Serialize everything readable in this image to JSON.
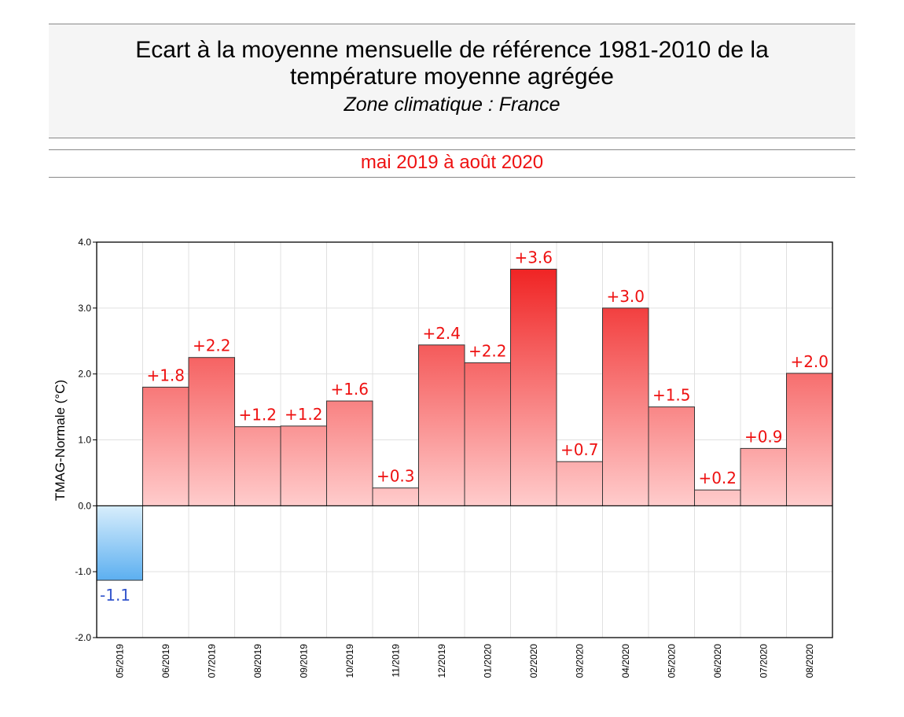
{
  "header": {
    "title_line1": "Ecart à la moyenne mensuelle de référence 1981-2010 de la",
    "title_line2": "température moyenne  agrégée",
    "subtitle": "Zone climatique : France"
  },
  "period": "mai 2019 à août 2020",
  "chart_data": {
    "type": "bar",
    "title": "Ecart à la moyenne mensuelle de référence 1981-2010 de la température moyenne  agrégée",
    "ylabel": "TMAG-Normale (°C)",
    "xlabel": "",
    "ylim": [
      -2.0,
      4.0
    ],
    "yticks": [
      "-2.0",
      "-1.0",
      "0.0",
      "1.0",
      "2.0",
      "3.0",
      "4.0"
    ],
    "grid": true,
    "categories": [
      "05/2019",
      "06/2019",
      "07/2019",
      "08/2019",
      "09/2019",
      "10/2019",
      "11/2019",
      "12/2019",
      "01/2020",
      "02/2020",
      "03/2020",
      "04/2020",
      "05/2020",
      "06/2020",
      "07/2020",
      "08/2020"
    ],
    "values": [
      -1.13,
      1.8,
      2.25,
      1.2,
      1.21,
      1.59,
      0.27,
      2.44,
      2.17,
      3.59,
      0.67,
      3.0,
      1.5,
      0.24,
      0.87,
      2.01
    ],
    "labels": [
      "-1.1",
      "+1.8",
      "+2.2",
      "+1.2",
      "+1.2",
      "+1.6",
      "+0.3",
      "+2.4",
      "+2.2",
      "+3.6",
      "+0.7",
      "+3.0",
      "+1.5",
      "+0.2",
      "+0.9",
      "+2.0"
    ],
    "colors": {
      "positive_top": "#ee1111",
      "positive_bottom": "#ffcccc",
      "negative_top": "#d8eefc",
      "negative_bottom": "#5aaef0",
      "positive_label": "#ee1111",
      "negative_label": "#3355cc"
    }
  }
}
